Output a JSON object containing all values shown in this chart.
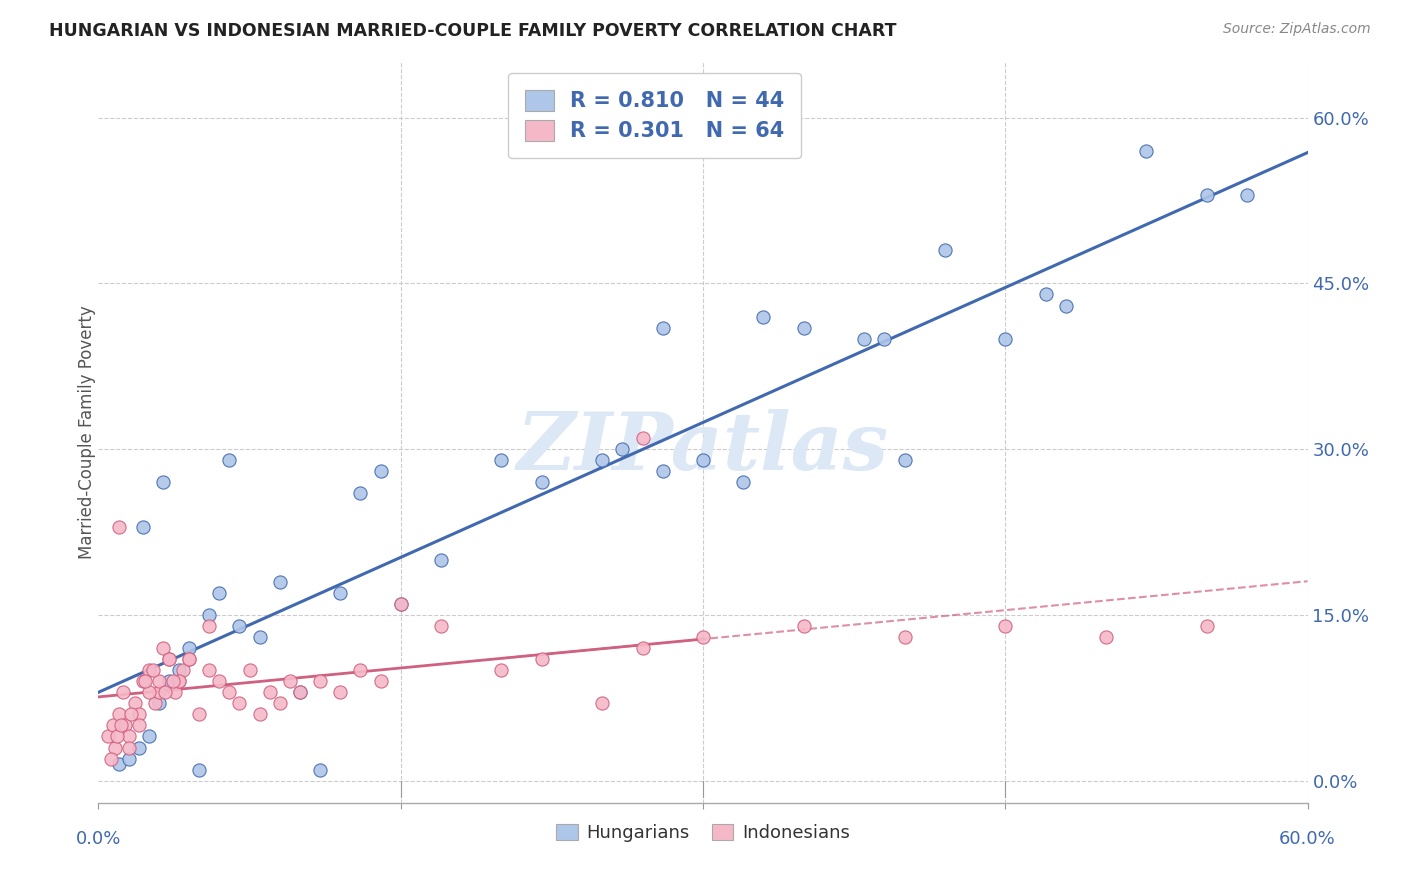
{
  "title": "HUNGARIAN VS INDONESIAN MARRIED-COUPLE FAMILY POVERTY CORRELATION CHART",
  "source": "Source: ZipAtlas.com",
  "ylabel": "Married-Couple Family Poverty",
  "ytick_labels": [
    "0.0%",
    "15.0%",
    "30.0%",
    "45.0%",
    "60.0%"
  ],
  "ytick_values": [
    0,
    15,
    30,
    45,
    60
  ],
  "xtick_labels_bottom": [
    "0.0%",
    "60.0%"
  ],
  "xtick_labels_inner": [
    "15.0%",
    "30.0%",
    "45.0%"
  ],
  "xlim": [
    0,
    60
  ],
  "ylim": [
    -2,
    65
  ],
  "legend_blue_label": "Hungarians",
  "legend_pink_label": "Indonesians",
  "legend_r_blue": "0.810",
  "legend_n_blue": "44",
  "legend_r_pink": "0.301",
  "legend_n_pink": "64",
  "blue_color": "#aec6e8",
  "pink_color": "#f5b8c8",
  "line_blue_color": "#4169b0",
  "line_pink_color": "#d06080",
  "line_pink_dash_color": "#d06080",
  "title_color": "#222222",
  "axis_label_color": "#4169b0",
  "watermark_color": "#dce8f5",
  "background_color": "#ffffff",
  "blue_scatter_x": [
    1.0,
    1.5,
    2.0,
    2.5,
    3.0,
    3.5,
    4.0,
    4.5,
    5.0,
    5.5,
    6.0,
    7.0,
    8.0,
    9.0,
    10.0,
    11.0,
    12.0,
    13.0,
    14.0,
    15.0,
    17.0,
    20.0,
    22.0,
    25.0,
    26.0,
    28.0,
    30.0,
    32.0,
    35.0,
    38.0,
    40.0,
    42.0,
    45.0,
    48.0,
    52.0,
    55.0,
    2.2,
    3.2,
    6.5,
    28.0,
    33.0,
    39.0,
    47.0,
    57.0
  ],
  "blue_scatter_y": [
    1.5,
    2.0,
    3.0,
    4.0,
    7.0,
    9.0,
    10.0,
    12.0,
    1.0,
    15.0,
    17.0,
    14.0,
    13.0,
    18.0,
    8.0,
    1.0,
    17.0,
    26.0,
    28.0,
    16.0,
    20.0,
    29.0,
    27.0,
    29.0,
    30.0,
    28.0,
    29.0,
    27.0,
    41.0,
    40.0,
    29.0,
    48.0,
    40.0,
    43.0,
    57.0,
    53.0,
    23.0,
    27.0,
    29.0,
    41.0,
    42.0,
    40.0,
    44.0,
    53.0
  ],
  "pink_scatter_x": [
    0.5,
    0.7,
    0.8,
    1.0,
    1.2,
    1.3,
    1.5,
    1.8,
    2.0,
    2.2,
    2.5,
    2.8,
    3.0,
    3.2,
    3.5,
    3.8,
    4.0,
    4.2,
    4.5,
    5.0,
    5.5,
    6.0,
    6.5,
    7.0,
    7.5,
    8.0,
    8.5,
    9.0,
    9.5,
    10.0,
    11.0,
    12.0,
    13.0,
    14.0,
    15.0,
    17.0,
    20.0,
    22.0,
    25.0,
    27.0,
    30.0,
    35.0,
    40.0,
    45.0,
    50.0,
    55.0,
    1.0,
    1.5,
    2.0,
    2.5,
    3.0,
    3.5,
    4.0,
    4.5,
    0.6,
    0.9,
    1.1,
    1.6,
    2.3,
    2.7,
    3.3,
    3.7,
    5.5,
    27.0
  ],
  "pink_scatter_y": [
    4.0,
    5.0,
    3.0,
    6.0,
    8.0,
    5.0,
    4.0,
    7.0,
    6.0,
    9.0,
    10.0,
    7.0,
    8.0,
    12.0,
    11.0,
    8.0,
    9.0,
    10.0,
    11.0,
    6.0,
    10.0,
    9.0,
    8.0,
    7.0,
    10.0,
    6.0,
    8.0,
    7.0,
    9.0,
    8.0,
    9.0,
    8.0,
    10.0,
    9.0,
    16.0,
    14.0,
    10.0,
    11.0,
    7.0,
    12.0,
    13.0,
    14.0,
    13.0,
    14.0,
    13.0,
    14.0,
    23.0,
    3.0,
    5.0,
    8.0,
    9.0,
    11.0,
    9.0,
    11.0,
    2.0,
    4.0,
    5.0,
    6.0,
    9.0,
    10.0,
    8.0,
    9.0,
    14.0,
    31.0
  ],
  "pink_solid_x_end": 30,
  "pink_dash_x_start": 20
}
